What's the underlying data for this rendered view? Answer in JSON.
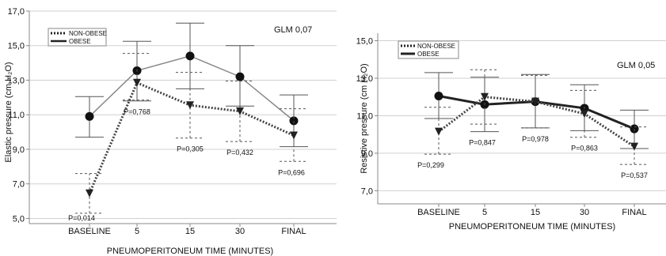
{
  "chart_data": [
    {
      "type": "line",
      "ylabel": "Elastic pressure (cm H₂O)",
      "xlabel": "PNEUMOPERITONEUM TIME (MINUTES)",
      "annotation": "GLM 0,07",
      "categories": [
        "BASELINE",
        "5",
        "15",
        "30",
        "FINAL"
      ],
      "ylim": [
        4.7,
        17.0
      ],
      "yticks": [
        5.0,
        7.0,
        9.0,
        11.0,
        13.0,
        15.0,
        17.0
      ],
      "ytick_labels": [
        "5,0",
        "7,0",
        "9,0",
        "11,0",
        "13,0",
        "15,0",
        "17,0"
      ],
      "grid": true,
      "legend_position": "top-left",
      "series": [
        {
          "name": "NON-OBESE",
          "style": "dotted",
          "marker": "triangle-down",
          "values": [
            6.45,
            12.85,
            11.55,
            11.2,
            9.8
          ],
          "err_low": [
            5.3,
            11.85,
            9.65,
            9.45,
            8.3
          ],
          "err_high": [
            7.6,
            14.55,
            13.45,
            12.95,
            11.35
          ]
        },
        {
          "name": "OBESE",
          "style": "solid",
          "marker": "circle",
          "values": [
            10.9,
            13.55,
            14.4,
            13.2,
            10.65
          ],
          "err_low": [
            9.7,
            11.8,
            12.5,
            11.5,
            9.15
          ],
          "err_high": [
            12.05,
            15.25,
            16.3,
            15.0,
            12.15
          ]
        }
      ],
      "p_values": [
        "P=0,014",
        "P=0,768",
        "P=0,305",
        "P=0,432",
        "P=0,696"
      ]
    },
    {
      "type": "line",
      "ylabel": "Resistive pressure (cm H₂O)",
      "xlabel": "PNEUMOPERITONEUM TIME (MINUTES)",
      "annotation": "GLM 0,05",
      "categories": [
        "BASELINE",
        "5",
        "15",
        "30",
        "FINAL"
      ],
      "ylim": [
        6.3,
        15.4
      ],
      "yticks": [
        7.0,
        9.0,
        11.0,
        13.0,
        15.0
      ],
      "ytick_labels": [
        "7,0",
        "9,0",
        "11,0",
        "13,0",
        "15,0"
      ],
      "grid": true,
      "legend_position": "top-left",
      "series": [
        {
          "name": "NON-OBESE",
          "style": "dotted",
          "marker": "triangle-down",
          "values": [
            10.15,
            12.0,
            11.75,
            11.1,
            9.35
          ],
          "err_low": [
            8.95,
            10.55,
            10.35,
            9.85,
            8.4
          ],
          "err_high": [
            11.45,
            13.45,
            13.15,
            12.35,
            10.4
          ]
        },
        {
          "name": "OBESE",
          "style": "solid",
          "marker": "circle",
          "values": [
            12.05,
            11.6,
            11.75,
            11.4,
            10.3
          ],
          "err_low": [
            10.85,
            10.15,
            10.35,
            10.2,
            9.25
          ],
          "err_high": [
            13.3,
            13.05,
            13.2,
            12.65,
            11.3
          ]
        }
      ],
      "p_values": [
        "P=0,299",
        "P=0,847",
        "P=0,978",
        "P=0,863",
        "P=0,537"
      ]
    }
  ]
}
